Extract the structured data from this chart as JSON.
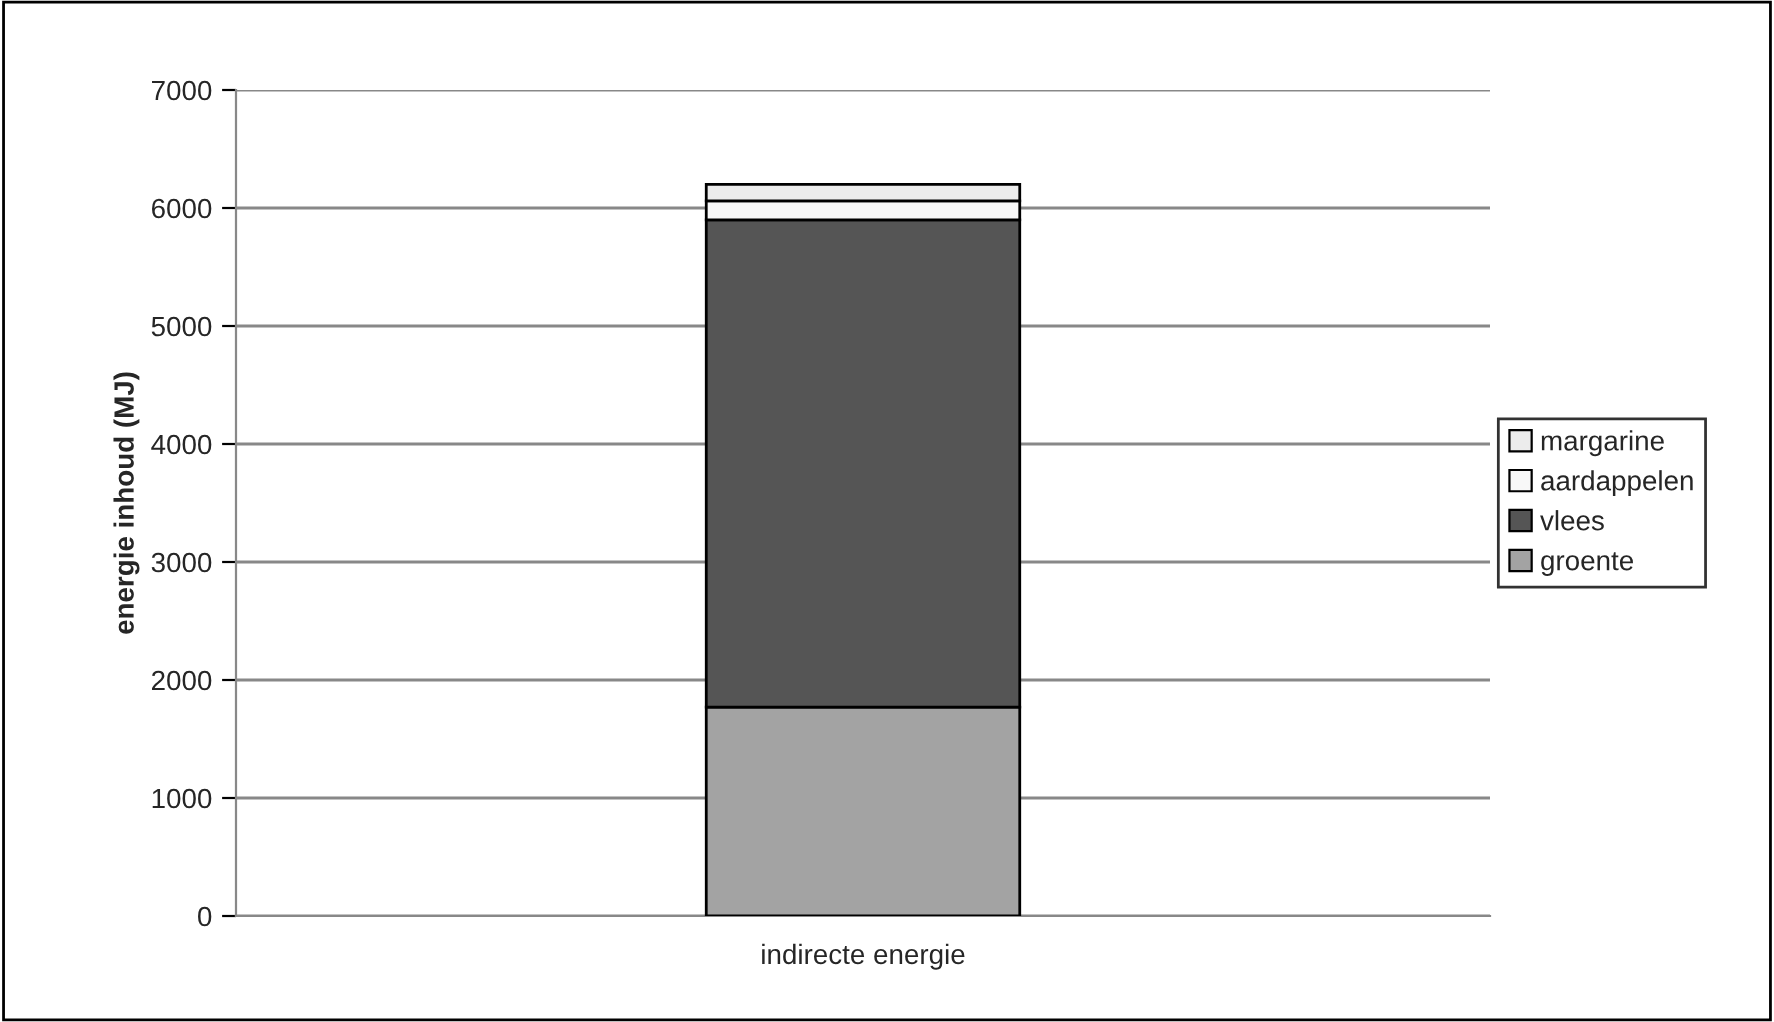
{
  "chart_data": {
    "type": "bar",
    "stacked": true,
    "ylabel": "energie inhoud (MJ)",
    "categories": [
      "indirecte energie"
    ],
    "series": [
      {
        "name": "groente",
        "color": "#a3a3a3",
        "values": [
          1770
        ]
      },
      {
        "name": "vlees",
        "color": "#555555",
        "values": [
          4130
        ]
      },
      {
        "name": "aardappelen",
        "color": "#f8f8f8",
        "values": [
          160
        ]
      },
      {
        "name": "margarine",
        "color": "#ececec",
        "values": [
          140
        ]
      }
    ],
    "ylim": [
      0,
      7000
    ],
    "yticks": [
      0,
      1000,
      2000,
      3000,
      4000,
      5000,
      6000,
      7000
    ],
    "grid": "y",
    "legend": "right"
  }
}
